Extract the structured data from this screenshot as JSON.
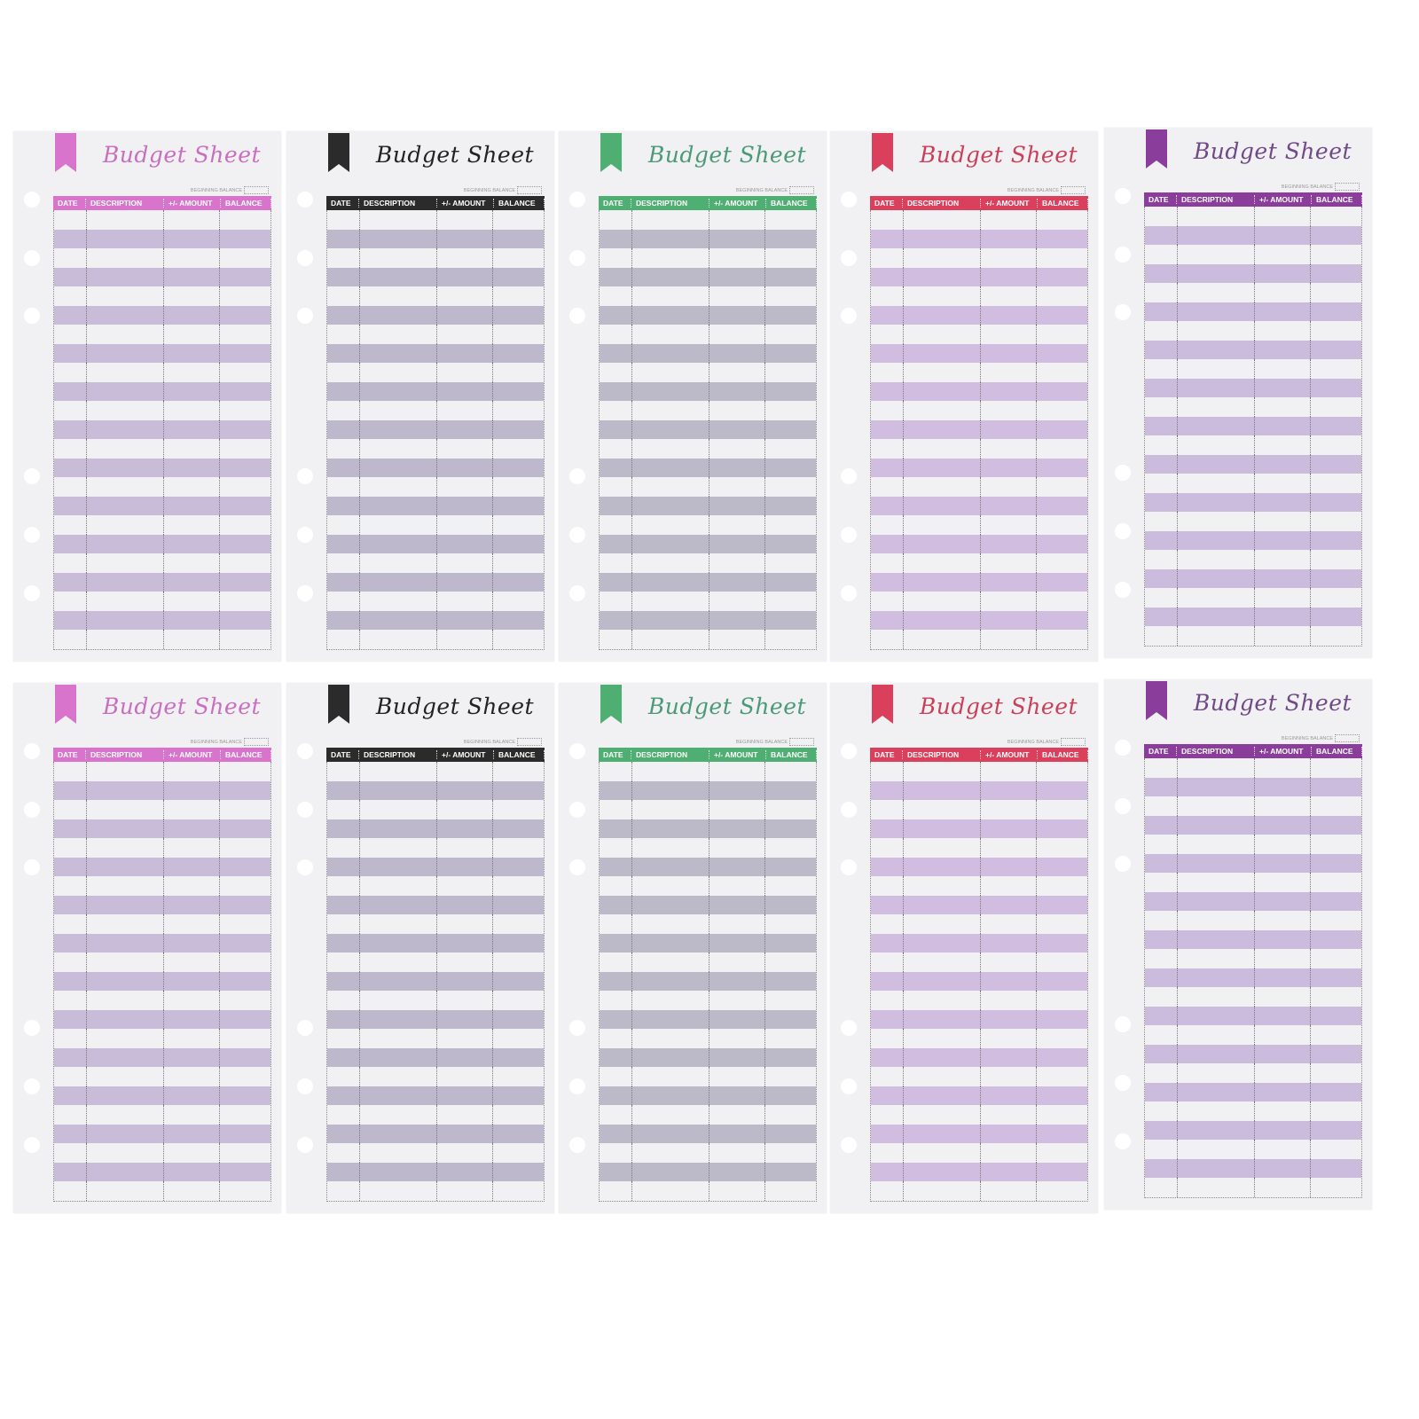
{
  "sheet_text": {
    "title": "Budget Sheet",
    "beginning_balance": "BEGINNING BALANCE",
    "columns": [
      "DATE",
      "DESCRIPTION",
      "+/- AMOUNT",
      "BALANCE"
    ]
  },
  "sheets": [
    {
      "accent": "#d874cc",
      "title_color": "#c86fbf",
      "stripe": "#c9bcd8"
    },
    {
      "accent": "#2b2b2b",
      "title_color": "#222222",
      "stripe": "#bdb8cc"
    },
    {
      "accent": "#4fae72",
      "title_color": "#4a9a78",
      "stripe": "#bcbac8"
    },
    {
      "accent": "#da3f5c",
      "title_color": "#c9405a",
      "stripe": "#d0bde0"
    },
    {
      "accent": "#8a3d9b",
      "title_color": "#6f4a86",
      "stripe": "#cbbbdc"
    },
    {
      "accent": "#d874cc",
      "title_color": "#c86fbf",
      "stripe": "#c9bcd8"
    },
    {
      "accent": "#2b2b2b",
      "title_color": "#222222",
      "stripe": "#bdb8cc"
    },
    {
      "accent": "#4fae72",
      "title_color": "#4a9a78",
      "stripe": "#bcbac8"
    },
    {
      "accent": "#da3f5c",
      "title_color": "#c9405a",
      "stripe": "#d0bde0"
    },
    {
      "accent": "#8a3d9b",
      "title_color": "#6f4a86",
      "stripe": "#cbbbdc"
    }
  ]
}
